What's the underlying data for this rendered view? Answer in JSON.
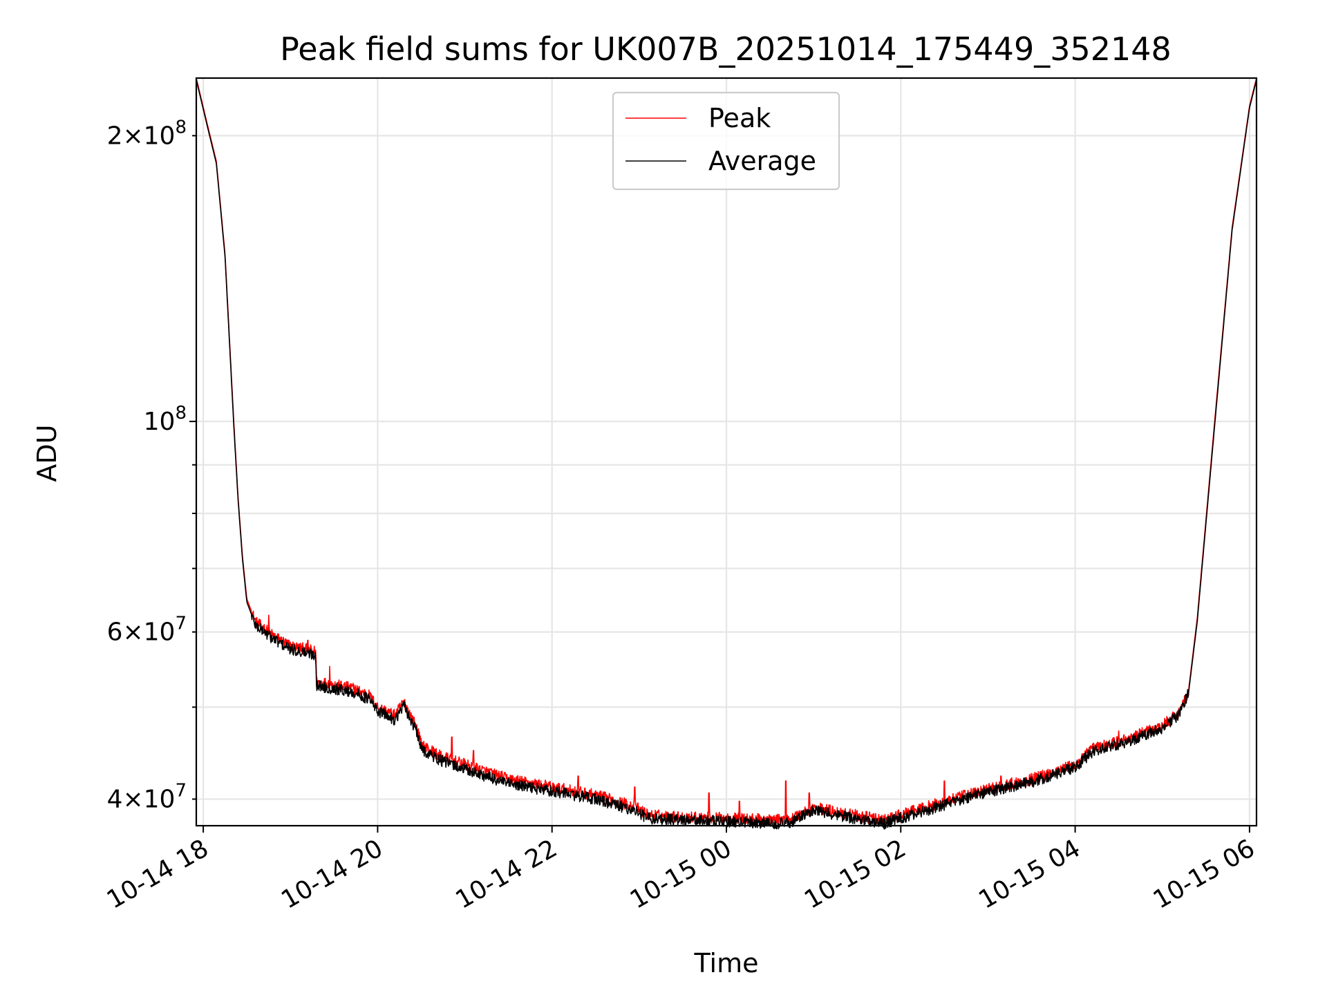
{
  "chart_data": {
    "type": "line",
    "title": "Peak field sums for UK007B_20251014_175449_352148",
    "xlabel": "Time",
    "ylabel": "ADU",
    "yscale": "log",
    "ylim": [
      37500000,
      230000000
    ],
    "xlim_hours": [
      17.92,
      30.08
    ],
    "x_ticks": [
      {
        "hour": 18,
        "label": "10-14 18"
      },
      {
        "hour": 20,
        "label": "10-14 20"
      },
      {
        "hour": 22,
        "label": "10-14 22"
      },
      {
        "hour": 24,
        "label": "10-15 00"
      },
      {
        "hour": 26,
        "label": "10-15 02"
      },
      {
        "hour": 28,
        "label": "10-15 04"
      },
      {
        "hour": 30,
        "label": "10-15 06"
      }
    ],
    "y_ticks_major": [
      {
        "value": 100000000,
        "base": "10",
        "exp": "8"
      }
    ],
    "y_ticks_labeled_minor": [
      {
        "value": 40000000,
        "mant": "4",
        "base": "10",
        "exp": "7"
      },
      {
        "value": 60000000,
        "mant": "6",
        "base": "10",
        "exp": "7"
      },
      {
        "value": 200000000,
        "mant": "2",
        "base": "10",
        "exp": "8"
      }
    ],
    "y_ticks_minor_unlabeled": [
      50000000,
      70000000,
      80000000,
      90000000
    ],
    "times_symbol": "×",
    "grid": true,
    "legend_position": "upper center",
    "series": [
      {
        "name": "Peak",
        "color": "#ff0000",
        "x_hours": [
          17.92,
          18.05,
          18.15,
          18.25,
          18.35,
          18.4,
          18.45,
          18.5,
          18.6,
          18.7,
          18.8,
          19.0,
          19.2,
          19.29,
          19.3,
          19.5,
          19.7,
          19.9,
          20.0,
          20.2,
          20.3,
          20.45,
          20.5,
          20.7,
          21.0,
          21.5,
          22.0,
          22.5,
          22.95,
          23.1,
          23.5,
          24.0,
          24.7,
          24.9,
          25.0,
          25.4,
          25.8,
          26.0,
          26.4,
          26.8,
          27.0,
          27.5,
          28.0,
          28.2,
          28.6,
          29.0,
          29.2,
          29.3,
          29.4,
          29.6,
          29.8,
          30.0,
          30.08
        ],
        "y": [
          230000000,
          205000000,
          188000000,
          150000000,
          100000000,
          83000000,
          72000000,
          65000000,
          61500000,
          60500000,
          59500000,
          58000000,
          57500000,
          57200000,
          53200000,
          52800000,
          52400000,
          51500000,
          50000000,
          49000000,
          50700000,
          47500000,
          45700000,
          44500000,
          43500000,
          42000000,
          41200000,
          40400000,
          39300000,
          38500000,
          38300000,
          38200000,
          38000000,
          38800000,
          39200000,
          38600000,
          38000000,
          38500000,
          39500000,
          40500000,
          41000000,
          42000000,
          43500000,
          45200000,
          46300000,
          47800000,
          49500000,
          52000000,
          62000000,
          100000000,
          160000000,
          215000000,
          230000000
        ],
        "spikes": [
          {
            "hour": 18.75,
            "value": 62500000
          },
          {
            "hour": 19.2,
            "value": 58800000
          },
          {
            "hour": 19.45,
            "value": 55200000
          },
          {
            "hour": 20.85,
            "value": 46500000
          },
          {
            "hour": 21.1,
            "value": 45000000
          },
          {
            "hour": 22.3,
            "value": 42300000
          },
          {
            "hour": 22.95,
            "value": 41200000
          },
          {
            "hour": 23.8,
            "value": 40600000
          },
          {
            "hour": 24.15,
            "value": 39800000
          },
          {
            "hour": 24.68,
            "value": 41800000
          },
          {
            "hour": 24.95,
            "value": 40600000
          },
          {
            "hour": 26.5,
            "value": 41800000
          },
          {
            "hour": 27.15,
            "value": 42300000
          },
          {
            "hour": 28.5,
            "value": 47200000
          }
        ]
      },
      {
        "name": "Average",
        "color": "#000000",
        "x_hours": [
          17.92,
          18.05,
          18.15,
          18.25,
          18.35,
          18.4,
          18.45,
          18.5,
          18.6,
          18.7,
          18.8,
          19.0,
          19.2,
          19.29,
          19.3,
          19.5,
          19.7,
          19.9,
          20.0,
          20.2,
          20.3,
          20.45,
          20.5,
          20.7,
          21.0,
          21.5,
          22.0,
          22.5,
          22.95,
          23.1,
          23.5,
          24.0,
          24.7,
          24.9,
          25.0,
          25.4,
          25.8,
          26.0,
          26.4,
          26.8,
          27.0,
          27.5,
          28.0,
          28.2,
          28.6,
          29.0,
          29.2,
          29.3,
          29.4,
          29.6,
          29.8,
          30.0,
          30.08
        ],
        "y": [
          229000000,
          204000000,
          187000000,
          149000000,
          99000000,
          82500000,
          71500000,
          64500000,
          61000000,
          60000000,
          59000000,
          57500000,
          57000000,
          56700000,
          52700000,
          52300000,
          51900000,
          51000000,
          49500000,
          48500000,
          50200000,
          47000000,
          45200000,
          44000000,
          43000000,
          41500000,
          40800000,
          40000000,
          38900000,
          38200000,
          38000000,
          37900000,
          37700000,
          38500000,
          38900000,
          38300000,
          37700000,
          38200000,
          39200000,
          40200000,
          40700000,
          41700000,
          43200000,
          44900000,
          46000000,
          47500000,
          49200000,
          51700000,
          61500000,
          99000000,
          159000000,
          214000000,
          229000000
        ]
      }
    ]
  }
}
